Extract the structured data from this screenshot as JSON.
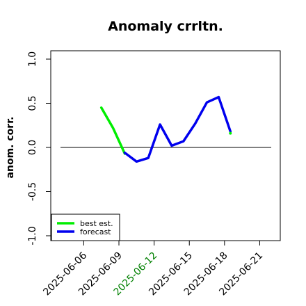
{
  "chart_data": {
    "type": "line",
    "title": "Anomaly crrltn.",
    "ylabel": "anom. corr.",
    "xlabel": "",
    "ylim": [
      -1.0,
      1.0
    ],
    "y_ticks": [
      "-1.0",
      "-0.5",
      "0.0",
      "0.5",
      "1.0"
    ],
    "x_ticks": [
      {
        "label": "2025-06-06",
        "color": "#000000"
      },
      {
        "label": "2025-06-09",
        "color": "#000000"
      },
      {
        "label": "2025-06-12",
        "color": "#008000"
      },
      {
        "label": "2025-06-15",
        "color": "#000000"
      },
      {
        "label": "2025-06-18",
        "color": "#000000"
      },
      {
        "label": "2025-06-21",
        "color": "#000000"
      }
    ],
    "grid": false,
    "reference_line": 0.0,
    "legend": {
      "placement": "bottom-left",
      "entries": [
        "best est.",
        "forecast"
      ]
    },
    "series": [
      {
        "name": "best est.",
        "color": "#00ee00",
        "points": [
          {
            "x": "2025-06-07 12:00",
            "y": 0.45
          },
          {
            "x": "2025-06-08 12:00",
            "y": 0.22
          },
          {
            "x": "2025-06-09 12:00",
            "y": -0.07
          }
        ]
      },
      {
        "name": "forecast",
        "color": "#0000ee",
        "points": [
          {
            "x": "2025-06-09 12:00",
            "y": -0.06
          },
          {
            "x": "2025-06-10 12:00",
            "y": -0.16
          },
          {
            "x": "2025-06-11 12:00",
            "y": -0.12
          },
          {
            "x": "2025-06-12 12:00",
            "y": 0.26
          },
          {
            "x": "2025-06-13 12:00",
            "y": 0.02
          },
          {
            "x": "2025-06-14 12:00",
            "y": 0.07
          },
          {
            "x": "2025-06-15 12:00",
            "y": 0.27
          },
          {
            "x": "2025-06-16 12:00",
            "y": 0.51
          },
          {
            "x": "2025-06-17 12:00",
            "y": 0.57
          },
          {
            "x": "2025-06-18 12:00",
            "y": 0.18
          }
        ]
      },
      {
        "name": "best est. (end)",
        "color": "#00ee00",
        "points": [
          {
            "x": "2025-06-18 12:00",
            "y": 0.16
          }
        ]
      }
    ]
  }
}
